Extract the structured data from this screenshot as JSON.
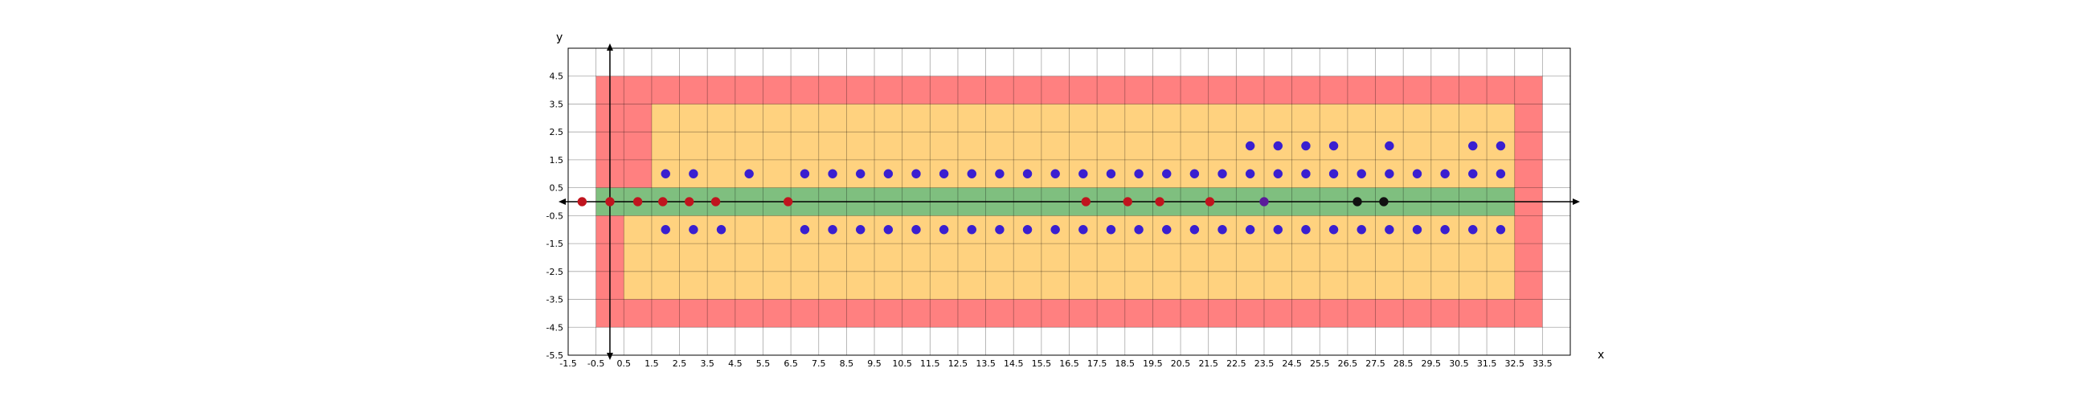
{
  "chart_data": {
    "type": "scatter",
    "xlabel": "x",
    "ylabel": "y",
    "xlim": [
      -1.5,
      34.5
    ],
    "ylim": [
      -5.5,
      5.5
    ],
    "grid": true,
    "xticks": [
      "-1.5",
      "-0.5",
      "0.5",
      "1.5",
      "2.5",
      "3.5",
      "4.5",
      "5.5",
      "6.5",
      "7.5",
      "8.5",
      "9.5",
      "10.5",
      "11.5",
      "12.5",
      "13.5",
      "14.5",
      "15.5",
      "16.5",
      "17.5",
      "18.5",
      "19.5",
      "20.5",
      "21.5",
      "22.5",
      "23.5",
      "24.5",
      "25.5",
      "26.5",
      "27.5",
      "28.5",
      "29.5",
      "30.5",
      "31.5",
      "32.5",
      "33.5"
    ],
    "yticks": [
      "4.5",
      "3.5",
      "2.5",
      "1.5",
      "0.5",
      "-0.5",
      "-1.5",
      "-2.5",
      "-3.5",
      "-4.5",
      "-5.5"
    ],
    "regions": [
      {
        "color": "#ff8080",
        "polygon": [
          [
            -0.5,
            -4.5
          ],
          [
            33.5,
            -4.5
          ],
          [
            33.5,
            4.5
          ],
          [
            -0.5,
            4.5
          ]
        ]
      },
      {
        "color": "#ffd27f",
        "polygon": [
          [
            1.5,
            3.5
          ],
          [
            32.5,
            3.5
          ],
          [
            32.5,
            -3.5
          ],
          [
            0.5,
            -3.5
          ],
          [
            0.5,
            -0.5
          ],
          [
            1.5,
            -0.5
          ]
        ]
      },
      {
        "color": "#7fbf7f",
        "polygon": [
          [
            -0.5,
            -0.5
          ],
          [
            32.5,
            -0.5
          ],
          [
            32.5,
            0.5
          ],
          [
            -0.5,
            0.5
          ]
        ]
      }
    ],
    "series": [
      {
        "color": "#3a1fd0",
        "points": [
          [
            23,
            2
          ],
          [
            24,
            2
          ],
          [
            25,
            2
          ],
          [
            26,
            2
          ],
          [
            28,
            2
          ],
          [
            31,
            2
          ],
          [
            32,
            2
          ],
          [
            2,
            1
          ],
          [
            3,
            1
          ],
          [
            5,
            1
          ],
          [
            7,
            1
          ],
          [
            8,
            1
          ],
          [
            9,
            1
          ],
          [
            10,
            1
          ],
          [
            11,
            1
          ],
          [
            12,
            1
          ],
          [
            13,
            1
          ],
          [
            14,
            1
          ],
          [
            15,
            1
          ],
          [
            16,
            1
          ],
          [
            17,
            1
          ],
          [
            18,
            1
          ],
          [
            19,
            1
          ],
          [
            20,
            1
          ],
          [
            21,
            1
          ],
          [
            22,
            1
          ],
          [
            23,
            1
          ],
          [
            24,
            1
          ],
          [
            25,
            1
          ],
          [
            26,
            1
          ],
          [
            27,
            1
          ],
          [
            28,
            1
          ],
          [
            29,
            1
          ],
          [
            30,
            1
          ],
          [
            31,
            1
          ],
          [
            32,
            1
          ],
          [
            2,
            -1
          ],
          [
            3,
            -1
          ],
          [
            4,
            -1
          ],
          [
            7,
            -1
          ],
          [
            8,
            -1
          ],
          [
            9,
            -1
          ],
          [
            10,
            -1
          ],
          [
            11,
            -1
          ],
          [
            12,
            -1
          ],
          [
            13,
            -1
          ],
          [
            14,
            -1
          ],
          [
            15,
            -1
          ],
          [
            16,
            -1
          ],
          [
            17,
            -1
          ],
          [
            18,
            -1
          ],
          [
            19,
            -1
          ],
          [
            20,
            -1
          ],
          [
            21,
            -1
          ],
          [
            22,
            -1
          ],
          [
            23,
            -1
          ],
          [
            24,
            -1
          ],
          [
            25,
            -1
          ],
          [
            26,
            -1
          ],
          [
            27,
            -1
          ],
          [
            28,
            -1
          ],
          [
            29,
            -1
          ],
          [
            30,
            -1
          ],
          [
            31,
            -1
          ],
          [
            32,
            -1
          ]
        ]
      },
      {
        "color": "#c0141e",
        "points": [
          [
            -1,
            0
          ],
          [
            0,
            0
          ],
          [
            1,
            0
          ],
          [
            1.9,
            0
          ],
          [
            2.85,
            0
          ],
          [
            3.8,
            0
          ],
          [
            6.4,
            0
          ],
          [
            17.1,
            0
          ],
          [
            18.6,
            0
          ],
          [
            19.75,
            0
          ],
          [
            21.55,
            0
          ]
        ]
      },
      {
        "color": "#5a1a9a",
        "points": [
          [
            23.5,
            0
          ]
        ]
      },
      {
        "color": "#111111",
        "points": [
          [
            26.85,
            0
          ],
          [
            27.8,
            0
          ]
        ]
      }
    ]
  }
}
